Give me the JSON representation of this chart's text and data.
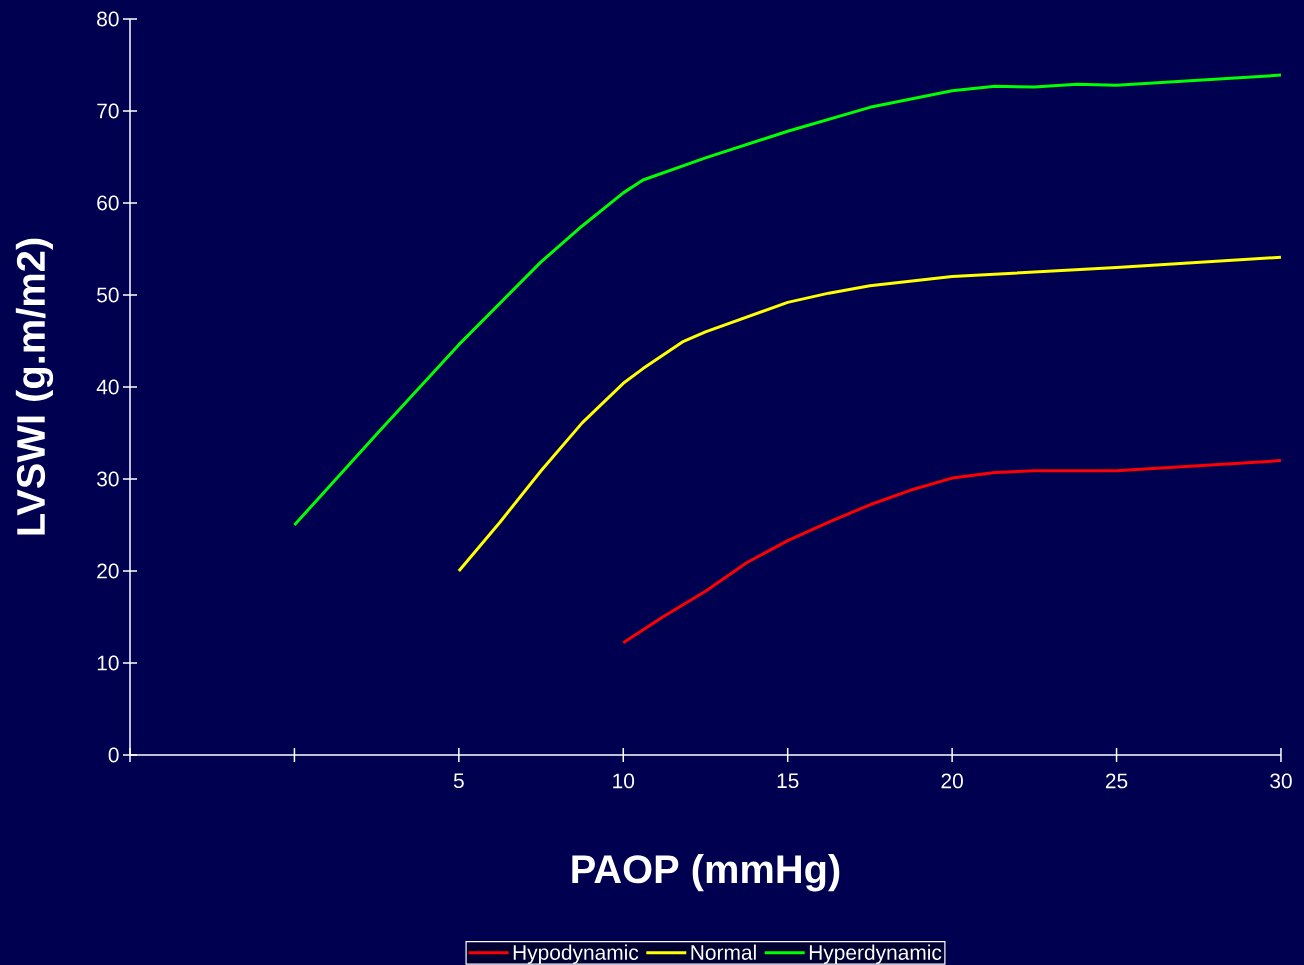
{
  "chart_data": {
    "type": "line",
    "xlabel": "PAOP (mmHg)",
    "ylabel": "LVSWI (g.m/m2)",
    "xlim": [
      -5,
      30
    ],
    "ylim": [
      0,
      80
    ],
    "xticks": [
      {
        "value": -5,
        "label": null
      },
      {
        "value": 0,
        "label": null
      },
      5,
      10,
      15,
      20,
      25,
      30
    ],
    "yticks": [
      0,
      10,
      20,
      30,
      40,
      50,
      60,
      70,
      80
    ],
    "legend": "bottom",
    "marker": "none",
    "line_style": "solid",
    "series": [
      {
        "name": "Hypodynamic",
        "color": "#ff0000",
        "x": [
          10,
          11.2,
          12.5,
          13.75,
          15,
          16.25,
          17.5,
          18.75,
          20,
          21.3,
          22.5,
          25,
          30
        ],
        "values": [
          12.2,
          15,
          17.8,
          20.9,
          23.3,
          25.3,
          27.2,
          28.8,
          30.1,
          30.7,
          30.9,
          30.9,
          32
        ]
      },
      {
        "name": "Normal",
        "color": "#ffff00",
        "x": [
          5,
          6.25,
          7.5,
          8.75,
          10,
          10.6,
          11.8,
          12.5,
          15,
          16.25,
          17.5,
          20,
          25,
          30
        ],
        "values": [
          20,
          25.3,
          30.9,
          36.1,
          40.4,
          42,
          44.9,
          46,
          49.2,
          50.2,
          51,
          52,
          53,
          54.1
        ]
      },
      {
        "name": "Hyperdynamic",
        "color": "#00ff00",
        "x": [
          0,
          2.56,
          5,
          7.5,
          8.75,
          10,
          10.6,
          12.5,
          15,
          17.5,
          20,
          21.3,
          22.5,
          23.8,
          25,
          30
        ],
        "values": [
          25,
          35.1,
          44.6,
          53.6,
          57.5,
          61.1,
          62.5,
          64.9,
          67.8,
          70.4,
          72.2,
          72.7,
          72.6,
          72.9,
          72.8,
          73.9
        ]
      }
    ]
  }
}
